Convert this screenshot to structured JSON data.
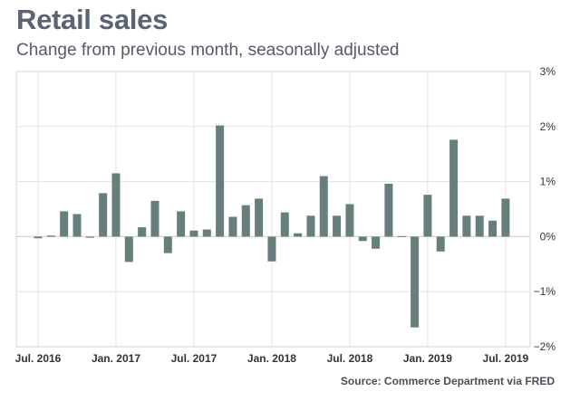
{
  "chart_data": {
    "type": "bar",
    "title": "Retail sales",
    "subtitle": "Change from previous month, seasonally adjusted",
    "source": "Source: Commerce Department via FRED",
    "xlabel": "",
    "ylabel": "",
    "ylim": [
      -2,
      3
    ],
    "yticks": [
      3,
      2,
      1,
      0,
      -1,
      -2
    ],
    "ytick_labels": [
      "3%",
      "2%",
      "1%",
      "0%",
      "−1%",
      "−2%"
    ],
    "xtick_labels": [
      "Jul. 2016",
      "Jan. 2017",
      "Jul. 2017",
      "Jan. 2018",
      "Jul. 2018",
      "Jan. 2019",
      "Jul. 2019"
    ],
    "xtick_month_index": [
      0,
      6,
      12,
      18,
      24,
      30,
      36
    ],
    "grid": true,
    "bar_color": "#677f7c",
    "categories": [
      "2016-07",
      "2016-08",
      "2016-09",
      "2016-10",
      "2016-11",
      "2016-12",
      "2017-01",
      "2017-02",
      "2017-03",
      "2017-04",
      "2017-05",
      "2017-06",
      "2017-07",
      "2017-08",
      "2017-09",
      "2017-10",
      "2017-11",
      "2017-12",
      "2018-01",
      "2018-02",
      "2018-03",
      "2018-04",
      "2018-05",
      "2018-06",
      "2018-07",
      "2018-08",
      "2018-09",
      "2018-10",
      "2018-11",
      "2018-12",
      "2019-01",
      "2019-02",
      "2019-03",
      "2019-04",
      "2019-05",
      "2019-06",
      "2019-07"
    ],
    "values": [
      -0.03,
      0.02,
      0.46,
      0.41,
      -0.02,
      0.79,
      1.15,
      -0.46,
      0.17,
      0.65,
      -0.3,
      0.46,
      0.11,
      0.13,
      2.02,
      0.36,
      0.57,
      0.69,
      -0.45,
      0.44,
      0.06,
      0.38,
      1.1,
      0.38,
      0.59,
      -0.08,
      -0.22,
      0.96,
      0.0,
      -1.65,
      0.76,
      -0.27,
      1.76,
      0.38,
      0.38,
      0.29,
      0.69
    ]
  }
}
